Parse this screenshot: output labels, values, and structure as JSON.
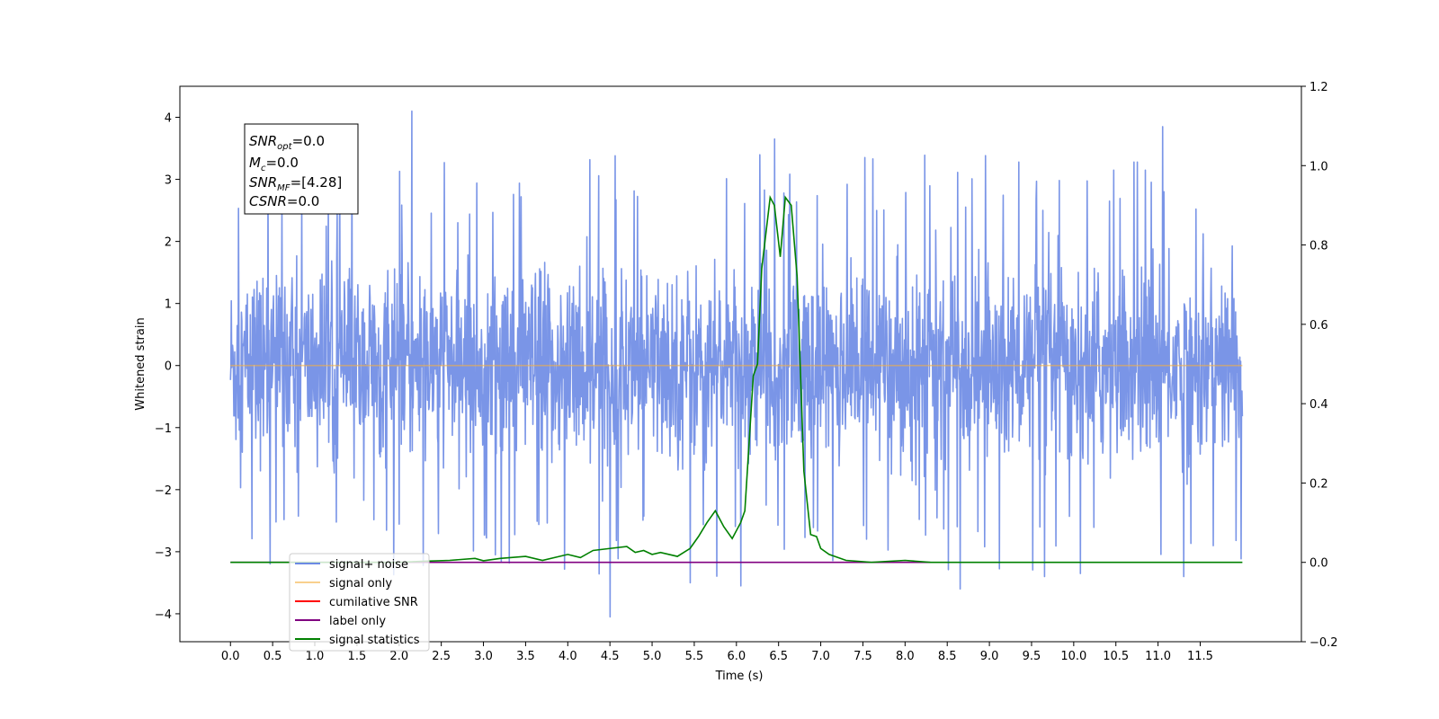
{
  "chart_data": {
    "type": "line",
    "xlabel": "Time (s)",
    "ylabel": "Whitened strain",
    "xlim": [
      -0.6,
      12.7
    ],
    "ylim": [
      -4.45,
      4.5
    ],
    "y2lim": [
      -0.2,
      1.2
    ],
    "x_ticks": [
      "0.0",
      "0.5",
      "1.0",
      "1.5",
      "2.0",
      "2.5",
      "3.0",
      "3.5",
      "4.0",
      "4.5",
      "5.0",
      "5.5",
      "6.0",
      "6.5",
      "7.0",
      "7.5",
      "8.0",
      "8.5",
      "9.0",
      "9.5",
      "10.0",
      "10.5",
      "11.0",
      "11.5"
    ],
    "y_ticks": [
      "4",
      "3",
      "2",
      "1",
      "0",
      "−1",
      "−2",
      "−3",
      "−4"
    ],
    "y2_ticks": [
      "1.2",
      "1.0",
      "0.8",
      "0.6",
      "0.4",
      "0.2",
      "0.0",
      "−0.2"
    ],
    "grid": false,
    "legend_position": "lower-left",
    "annotation": {
      "snr_opt": {
        "sym": "SNR",
        "sub": "opt",
        "val": "=0.0"
      },
      "mc": {
        "sym": "M",
        "sub": "c",
        "val": "=0.0"
      },
      "snr_mf": {
        "sym": "SNR",
        "sub": "MF",
        "val": "=[4.28]"
      },
      "csnr": {
        "sym": "CSNR",
        "val": "=0.0"
      }
    },
    "series": [
      {
        "name": "signal+ noise",
        "color": "#6c8ae4",
        "axis": "left",
        "description": "whitened noise time series, roughly uniform amplitude ±2.4 with spikes to ±4",
        "x_range": [
          0.0,
          12.0
        ],
        "extreme_spikes": [
          [
            2.15,
            4.1
          ],
          [
            11.05,
            3.85
          ],
          [
            6.45,
            3.65
          ],
          [
            4.5,
            -4.05
          ],
          [
            6.05,
            -3.55
          ],
          [
            8.65,
            -3.6
          ],
          [
            11.3,
            -3.4
          ],
          [
            9.65,
            -3.4
          ],
          [
            5.45,
            -3.5
          ]
        ]
      },
      {
        "name": "signal only",
        "color": "#f5b041",
        "axis": "left",
        "x": [
          0.0,
          12.0
        ],
        "y": [
          0.0,
          0.0
        ]
      },
      {
        "name": "cumilative SNR",
        "color": "#ff0000",
        "axis": "right",
        "x": [],
        "y": []
      },
      {
        "name": "label only",
        "color": "#800080",
        "axis": "right",
        "x": [
          0.0,
          8.3
        ],
        "y": [
          0.0,
          0.0
        ]
      },
      {
        "name": "signal statistics",
        "color": "#008000",
        "axis": "right",
        "x": [
          0.0,
          2.0,
          2.3,
          2.6,
          2.9,
          3.0,
          3.2,
          3.5,
          3.7,
          4.0,
          4.15,
          4.3,
          4.5,
          4.7,
          4.8,
          4.9,
          5.0,
          5.1,
          5.3,
          5.45,
          5.55,
          5.65,
          5.75,
          5.85,
          5.95,
          6.05,
          6.1,
          6.2,
          6.25,
          6.3,
          6.4,
          6.45,
          6.52,
          6.58,
          6.65,
          6.72,
          6.8,
          6.88,
          6.95,
          7.0,
          7.1,
          7.3,
          7.6,
          8.0,
          8.3,
          12.0
        ],
        "y": [
          0.0,
          0.0,
          0.003,
          0.005,
          0.01,
          0.004,
          0.01,
          0.015,
          0.005,
          0.02,
          0.012,
          0.03,
          0.035,
          0.04,
          0.025,
          0.03,
          0.02,
          0.025,
          0.015,
          0.035,
          0.065,
          0.1,
          0.13,
          0.09,
          0.06,
          0.1,
          0.13,
          0.47,
          0.5,
          0.74,
          0.92,
          0.9,
          0.77,
          0.92,
          0.9,
          0.72,
          0.23,
          0.07,
          0.065,
          0.035,
          0.02,
          0.005,
          0.0,
          0.005,
          0.0,
          0.0
        ]
      }
    ]
  }
}
